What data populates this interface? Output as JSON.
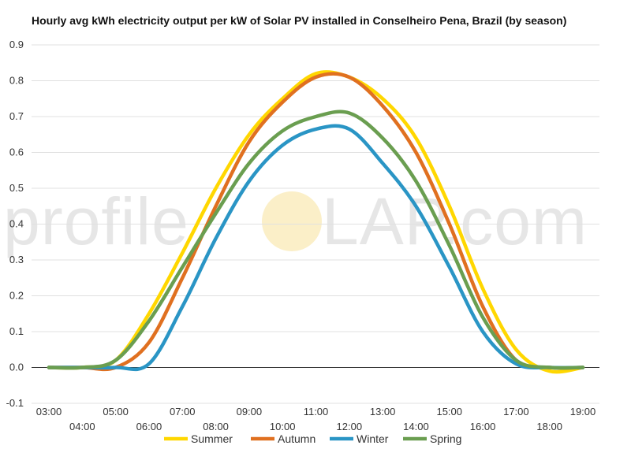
{
  "chart_data": {
    "type": "line",
    "title": "Hourly avg kWh electricity output per kW of Solar PV installed in Conselheiro Pena, Brazil (by season)",
    "xlabel": "",
    "ylabel": "",
    "ylim": [
      -0.1,
      0.9
    ],
    "yticks": [
      "0.9",
      "0.8",
      "0.7",
      "0.6",
      "0.5",
      "0.4",
      "0.3",
      "0.2",
      "0.1",
      "0.0",
      "-0.1"
    ],
    "categories": [
      "03:00",
      "04:00",
      "05:00",
      "06:00",
      "07:00",
      "08:00",
      "09:00",
      "10:00",
      "11:00",
      "12:00",
      "13:00",
      "14:00",
      "15:00",
      "16:00",
      "17:00",
      "18:00",
      "19:00"
    ],
    "grid": true,
    "legend": "bottom",
    "series": [
      {
        "name": "Summer",
        "color": "#FFD700",
        "values": [
          0.0,
          0.0,
          0.02,
          0.15,
          0.32,
          0.5,
          0.65,
          0.75,
          0.82,
          0.81,
          0.75,
          0.64,
          0.45,
          0.22,
          0.05,
          -0.01,
          0.0
        ]
      },
      {
        "name": "Autumn",
        "color": "#E07020",
        "values": [
          0.0,
          0.0,
          0.0,
          0.07,
          0.25,
          0.45,
          0.63,
          0.74,
          0.81,
          0.81,
          0.73,
          0.6,
          0.4,
          0.17,
          0.02,
          0.0,
          0.0
        ]
      },
      {
        "name": "Winter",
        "color": "#2A95C5",
        "values": [
          0.0,
          0.0,
          0.0,
          0.01,
          0.17,
          0.36,
          0.52,
          0.62,
          0.665,
          0.665,
          0.57,
          0.45,
          0.28,
          0.1,
          0.01,
          0.0,
          0.0
        ]
      },
      {
        "name": "Spring",
        "color": "#6A9E50",
        "values": [
          0.0,
          0.0,
          0.02,
          0.13,
          0.28,
          0.43,
          0.57,
          0.66,
          0.7,
          0.71,
          0.64,
          0.52,
          0.34,
          0.14,
          0.02,
          0.0,
          0.0
        ]
      }
    ]
  },
  "watermark": {
    "text_left": "profile",
    "text_right": "LAP.com",
    "lettering": "profileSOLAR.com"
  }
}
